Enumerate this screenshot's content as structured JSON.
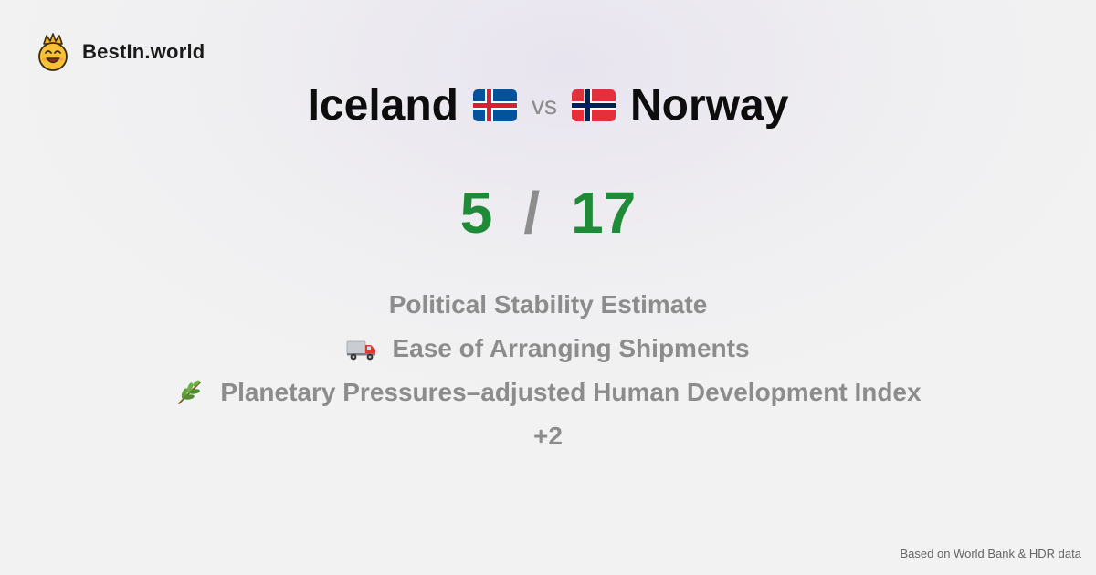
{
  "brand": {
    "name": "BestIn.world",
    "icon": "crowned-smiley-icon"
  },
  "headline": {
    "left_country": "Iceland",
    "left_flag": "iceland-flag-icon",
    "vs": "vs",
    "right_country": "Norway",
    "right_flag": "norway-flag-icon"
  },
  "score": {
    "left": "5",
    "separator": "/",
    "right": "17",
    "color": "#1f8a37"
  },
  "metrics": [
    {
      "icon": "",
      "label": "Political Stability Estimate"
    },
    {
      "icon": "delivery-truck-icon",
      "label": "Ease of Arranging Shipments"
    },
    {
      "icon": "herb-sprig-icon",
      "label": "Planetary Pressures–adjusted Human Development Index"
    }
  ],
  "more": "+2",
  "footer": {
    "note": "Based on World Bank & HDR data"
  }
}
